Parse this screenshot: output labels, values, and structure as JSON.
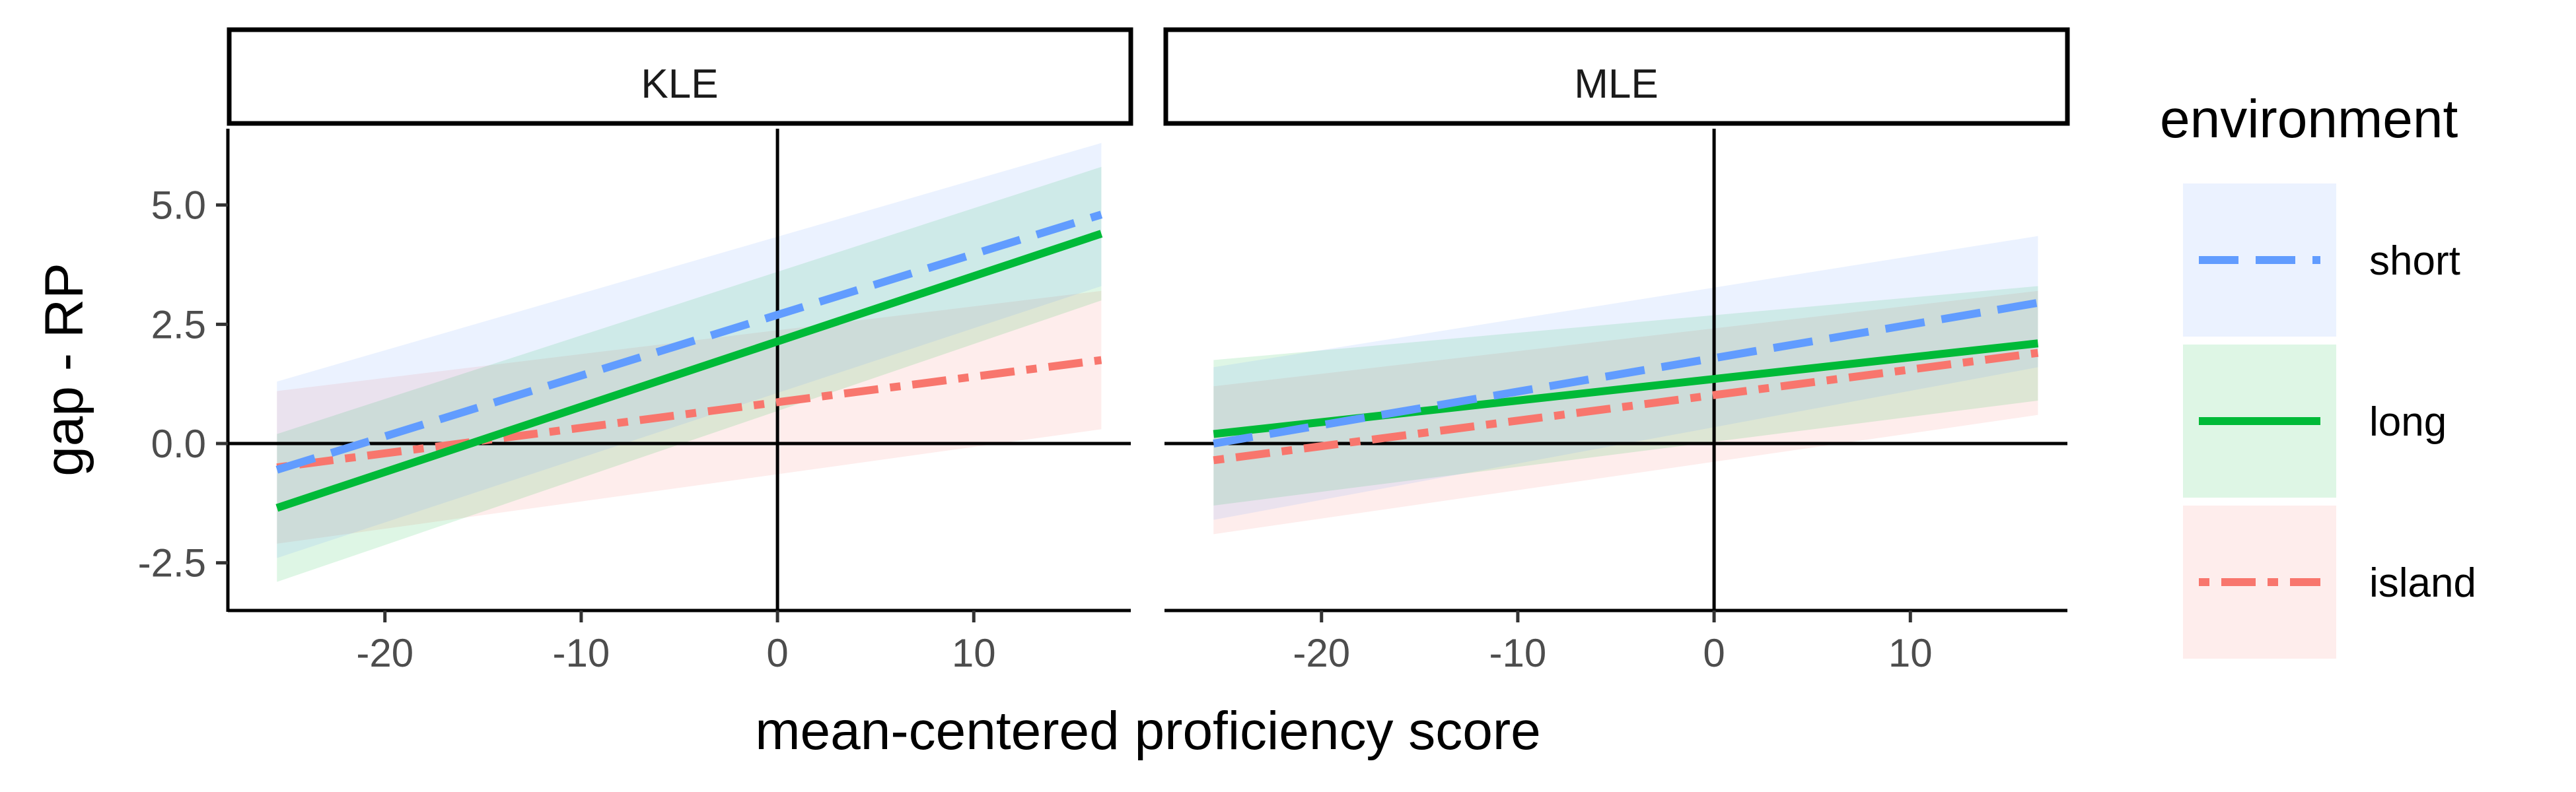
{
  "chart_data": {
    "type": "line",
    "xlabel": "mean-centered proficiency score",
    "ylabel": "gap - RP",
    "xlim": [
      -28,
      18
    ],
    "ylim": [
      -3.5,
      6.6
    ],
    "x_ticks": [
      -20,
      -10,
      0,
      10
    ],
    "x_tick_labels": [
      "-20",
      "-10",
      "0",
      "10"
    ],
    "y_ticks": [
      -2.5,
      0.0,
      2.5,
      5.0
    ],
    "y_tick_labels": [
      "-2.5",
      "0.0",
      "2.5",
      "5.0"
    ],
    "reference_lines": {
      "x": 0,
      "y": 0
    },
    "grid": false,
    "legend": {
      "title": "environment",
      "placement": "right",
      "entries": [
        "short",
        "long",
        "island"
      ]
    },
    "panels": [
      {
        "strip": "KLE",
        "series": [
          {
            "name": "short",
            "color": "#619CFF",
            "dash": "long-dash",
            "x": [
              -25.5,
              16.5
            ],
            "y": [
              -0.55,
              4.8
            ],
            "ci_lower": [
              -2.4,
              3.3
            ],
            "ci_upper": [
              1.3,
              6.3
            ]
          },
          {
            "name": "long",
            "color": "#00BA38",
            "dash": "solid",
            "x": [
              -25.5,
              16.5
            ],
            "y": [
              -1.35,
              4.4
            ],
            "ci_lower": [
              -2.9,
              3.0
            ],
            "ci_upper": [
              0.2,
              5.8
            ]
          },
          {
            "name": "island",
            "color": "#F8766D",
            "dash": "dot-dash",
            "x": [
              -25.5,
              16.5
            ],
            "y": [
              -0.5,
              1.75
            ],
            "ci_lower": [
              -2.1,
              0.3
            ],
            "ci_upper": [
              1.1,
              3.2
            ]
          }
        ]
      },
      {
        "strip": "MLE",
        "series": [
          {
            "name": "short",
            "color": "#619CFF",
            "dash": "long-dash",
            "x": [
              -25.5,
              16.5
            ],
            "y": [
              0.0,
              2.95
            ],
            "ci_lower": [
              -1.6,
              1.6
            ],
            "ci_upper": [
              1.6,
              4.35
            ]
          },
          {
            "name": "long",
            "color": "#00BA38",
            "dash": "solid",
            "x": [
              -25.5,
              16.5
            ],
            "y": [
              0.2,
              2.1
            ],
            "ci_lower": [
              -1.3,
              0.9
            ],
            "ci_upper": [
              1.75,
              3.3
            ]
          },
          {
            "name": "island",
            "color": "#F8766D",
            "dash": "dot-dash",
            "x": [
              -25.5,
              16.5
            ],
            "y": [
              -0.35,
              1.9
            ],
            "ci_lower": [
              -1.9,
              0.6
            ],
            "ci_upper": [
              1.2,
              3.2
            ]
          }
        ]
      }
    ]
  }
}
